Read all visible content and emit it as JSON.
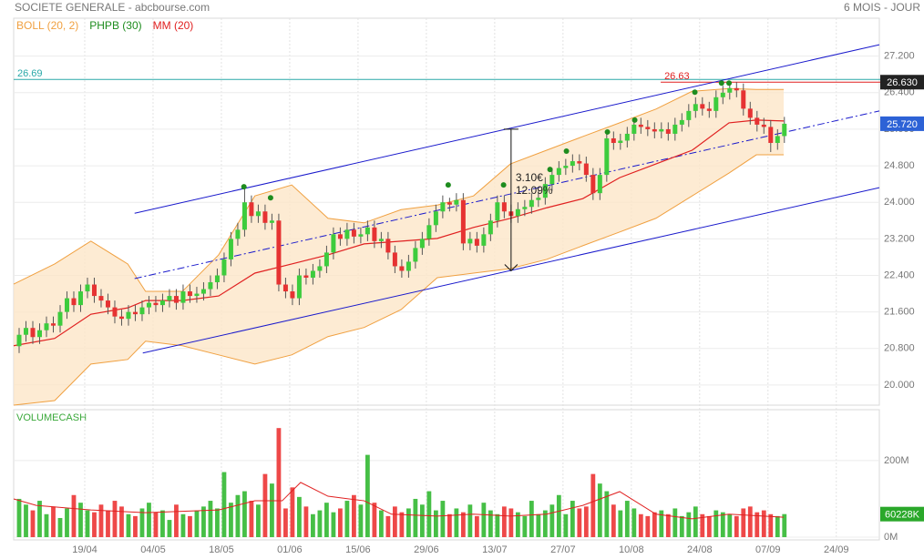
{
  "chart_data": [
    {
      "type": "candlestick",
      "title": "SOCIETE GENERALE - abcbourse.com",
      "subtitle": "6 MOIS - JOUR",
      "xlim": [
        -0.8,
        125.9
      ],
      "xticks": [
        {
          "value": 9.6,
          "label": "19/04"
        },
        {
          "value": 19.6,
          "label": "04/05"
        },
        {
          "value": 29.6,
          "label": "18/05"
        },
        {
          "value": 39.6,
          "label": "01/06"
        },
        {
          "value": 49.6,
          "label": "15/06"
        },
        {
          "value": 59.6,
          "label": "29/06"
        },
        {
          "value": 69.6,
          "label": "13/07"
        },
        {
          "value": 79.6,
          "label": "27/07"
        },
        {
          "value": 89.6,
          "label": "10/08"
        },
        {
          "value": 99.6,
          "label": "24/08"
        },
        {
          "value": 109.6,
          "label": "07/09"
        },
        {
          "value": 119.6,
          "label": "24/09"
        }
      ],
      "ylim": [
        19.56,
        28.03
      ],
      "yticks": [
        {
          "value": 20,
          "label": "20.000"
        },
        {
          "value": 20.8,
          "label": "20.800"
        },
        {
          "value": 21.6,
          "label": "21.600"
        },
        {
          "value": 22.4,
          "label": "22.400"
        },
        {
          "value": 23.2,
          "label": "23.200"
        },
        {
          "value": 24,
          "label": "24.000"
        },
        {
          "value": 24.8,
          "label": "24.800"
        },
        {
          "value": 25.6,
          "label": "25.600"
        },
        {
          "value": 26.4,
          "label": "26.400"
        },
        {
          "value": 27.2,
          "label": "27.200"
        }
      ],
      "grid": true,
      "up_color": "#3dcc3d",
      "down_color": "#e63232",
      "open": [
        20.85,
        21.1,
        21.25,
        21.05,
        21.2,
        21.35,
        21.3,
        21.6,
        21.9,
        21.75,
        22.05,
        22.2,
        21.95,
        21.85,
        21.7,
        21.5,
        21.45,
        21.6,
        21.55,
        21.7,
        21.8,
        21.75,
        21.85,
        21.95,
        21.8,
        22.05,
        21.95,
        22.0,
        22.1,
        22.25,
        22.4,
        22.75,
        23.2,
        23.4,
        24.0,
        23.7,
        23.8,
        23.55,
        23.6,
        22.2,
        22.05,
        21.9,
        22.4,
        22.35,
        22.5,
        22.6,
        22.9,
        23.3,
        23.2,
        23.4,
        23.25,
        23.3,
        23.45,
        23.15,
        23.2,
        22.9,
        22.6,
        22.5,
        22.7,
        23.0,
        23.2,
        23.5,
        23.8,
        24.0,
        23.95,
        24.05,
        23.1,
        23.2,
        23.05,
        23.3,
        23.6,
        24.0,
        23.8,
        23.7,
        23.85,
        23.9,
        24.05,
        24.1,
        24.4,
        24.6,
        24.75,
        24.8,
        24.9,
        24.85,
        24.6,
        24.2,
        24.6,
        25.4,
        25.3,
        25.35,
        25.5,
        25.7,
        25.65,
        25.6,
        25.55,
        25.6,
        25.5,
        25.7,
        25.8,
        26.0,
        26.15,
        26.05,
        26.0,
        26.3,
        26.4,
        26.5,
        26.45,
        26.05,
        25.85,
        25.7,
        25.65,
        25.3,
        25.45
      ],
      "high": [
        21.25,
        21.4,
        21.4,
        21.35,
        21.5,
        21.5,
        21.75,
        22.05,
        22.05,
        22.2,
        22.35,
        22.35,
        22.1,
        22.0,
        21.85,
        21.65,
        21.75,
        21.75,
        21.85,
        21.95,
        21.95,
        22.0,
        22.1,
        22.1,
        22.2,
        22.2,
        22.15,
        22.25,
        22.4,
        22.55,
        22.9,
        23.35,
        23.55,
        24.3,
        24.15,
        23.95,
        23.95,
        23.75,
        23.75,
        22.35,
        22.2,
        22.55,
        22.55,
        22.65,
        22.75,
        23.05,
        23.45,
        23.45,
        23.55,
        23.55,
        23.45,
        23.6,
        23.6,
        23.35,
        23.35,
        23.05,
        22.75,
        22.85,
        23.15,
        23.35,
        23.65,
        23.95,
        24.15,
        24.1,
        24.2,
        24.2,
        23.35,
        23.35,
        23.45,
        23.75,
        24.15,
        24.15,
        23.95,
        24.0,
        24.05,
        24.2,
        24.25,
        24.55,
        24.75,
        24.9,
        24.95,
        25.05,
        25.05,
        25.0,
        24.75,
        24.75,
        25.55,
        25.55,
        25.5,
        25.65,
        25.85,
        25.85,
        25.8,
        25.75,
        25.75,
        25.75,
        25.85,
        25.95,
        26.15,
        26.3,
        26.3,
        26.2,
        26.45,
        26.55,
        26.63,
        26.63,
        26.6,
        26.2,
        26.0,
        25.85,
        25.8,
        25.6,
        25.87
      ],
      "low": [
        20.7,
        20.95,
        20.9,
        20.9,
        21.05,
        21.15,
        21.15,
        21.45,
        21.6,
        21.6,
        21.9,
        21.8,
        21.7,
        21.55,
        21.35,
        21.3,
        21.3,
        21.4,
        21.4,
        21.55,
        21.6,
        21.6,
        21.7,
        21.65,
        21.65,
        21.8,
        21.8,
        21.85,
        21.95,
        22.1,
        22.25,
        22.6,
        23.05,
        23.25,
        23.55,
        23.55,
        23.4,
        23.4,
        22.05,
        21.9,
        21.75,
        21.75,
        22.2,
        22.2,
        22.35,
        22.45,
        22.75,
        23.05,
        23.05,
        23.1,
        23.1,
        23.15,
        23.0,
        23.0,
        22.75,
        22.45,
        22.35,
        22.35,
        22.55,
        22.85,
        23.05,
        23.35,
        23.65,
        23.8,
        23.8,
        22.95,
        22.95,
        22.9,
        22.9,
        23.15,
        23.45,
        23.65,
        23.55,
        23.55,
        23.7,
        23.75,
        23.9,
        23.95,
        24.25,
        24.45,
        24.6,
        24.65,
        24.7,
        24.45,
        24.05,
        24.05,
        24.45,
        25.15,
        25.15,
        25.2,
        25.35,
        25.5,
        25.45,
        25.4,
        25.4,
        25.35,
        25.35,
        25.55,
        25.65,
        25.85,
        25.9,
        25.85,
        25.85,
        26.15,
        26.25,
        26.3,
        25.9,
        25.7,
        25.55,
        25.5,
        25.1,
        25.15,
        25.3
      ],
      "close": [
        21.1,
        21.25,
        21.05,
        21.2,
        21.35,
        21.3,
        21.6,
        21.9,
        21.75,
        22.05,
        22.2,
        21.95,
        21.85,
        21.7,
        21.5,
        21.45,
        21.6,
        21.55,
        21.7,
        21.8,
        21.75,
        21.85,
        21.95,
        21.8,
        22.05,
        21.95,
        22.0,
        22.1,
        22.25,
        22.4,
        22.75,
        23.2,
        23.4,
        24.0,
        23.7,
        23.8,
        23.55,
        23.6,
        22.2,
        22.05,
        21.9,
        22.4,
        22.35,
        22.5,
        22.6,
        22.9,
        23.3,
        23.2,
        23.4,
        23.25,
        23.3,
        23.45,
        23.15,
        23.2,
        22.9,
        22.6,
        22.5,
        22.7,
        23.0,
        23.2,
        23.5,
        23.8,
        24.0,
        23.95,
        24.05,
        23.1,
        23.2,
        23.05,
        23.3,
        23.6,
        24.0,
        23.8,
        23.7,
        23.85,
        23.9,
        24.05,
        24.1,
        24.4,
        24.6,
        24.75,
        24.8,
        24.9,
        24.85,
        24.6,
        24.2,
        24.6,
        25.4,
        25.3,
        25.35,
        25.5,
        25.7,
        25.65,
        25.6,
        25.55,
        25.6,
        25.5,
        25.7,
        25.8,
        26.0,
        26.15,
        26.05,
        26.0,
        26.3,
        26.4,
        26.5,
        26.45,
        26.05,
        25.85,
        25.7,
        25.65,
        25.3,
        25.45,
        25.72
      ],
      "bollinger": {
        "name": "BOLL (20, 2)",
        "color": "#f0a040",
        "fill": "#fde6c8",
        "x": [
          -0.8,
          5.2,
          10.5,
          15.9,
          18.5,
          23.9,
          29.2,
          34.5,
          39.9,
          45.2,
          50.5,
          55.9,
          61.2,
          66.5,
          71.9,
          77.2,
          82.5,
          87.9,
          93.2,
          98.5,
          103.9,
          107.9,
          111.9
        ],
        "upper": [
          22.21,
          22.65,
          23.15,
          22.65,
          22.05,
          22.05,
          22.85,
          24.14,
          24.38,
          23.65,
          23.55,
          23.84,
          23.94,
          24.14,
          24.84,
          25.14,
          25.44,
          25.74,
          26.04,
          26.43,
          26.49,
          26.47,
          26.47
        ],
        "lower": [
          19.56,
          19.66,
          20.46,
          20.56,
          20.96,
          20.86,
          20.66,
          20.46,
          20.66,
          21.06,
          21.26,
          21.65,
          22.35,
          22.45,
          22.55,
          22.75,
          23.05,
          23.35,
          23.65,
          24.14,
          24.64,
          25.04,
          25.04
        ]
      },
      "phpb": {
        "name": "PHPB (30)",
        "color": "#1e8c1e",
        "x": [
          32.9,
          36.8,
          62.8,
          70.9,
          77.7,
          80.1,
          86.1,
          90.1,
          98.9,
          102.8,
          103.9
        ],
        "values": [
          24.34,
          24.1,
          24.38,
          24.38,
          24.72,
          25.12,
          25.54,
          25.8,
          26.41,
          26.61,
          26.61
        ]
      },
      "mm": {
        "name": "MM (20)",
        "color": "#e02020",
        "x": [
          -0.8,
          5.2,
          10.5,
          15.9,
          18.5,
          23.9,
          29.2,
          34.5,
          39.9,
          45.2,
          50.5,
          55.9,
          61.2,
          66.5,
          71.9,
          77.2,
          82.5,
          87.9,
          93.2,
          98.5,
          103.9,
          107.9,
          111.9
        ],
        "values": [
          20.86,
          21.02,
          21.55,
          21.69,
          21.85,
          21.85,
          21.95,
          22.45,
          22.65,
          22.85,
          23.09,
          23.15,
          23.21,
          23.45,
          23.65,
          23.88,
          24.08,
          24.54,
          24.84,
          25.14,
          25.74,
          25.8,
          25.78
        ]
      },
      "channel": {
        "color": "#1a1acc",
        "lines": [
          {
            "x": [
              16.9,
              125.9
            ],
            "values": [
              23.76,
              27.45
            ]
          },
          {
            "x": [
              16.9,
              125.9
            ],
            "values": [
              22.33,
              26.0
            ],
            "dashed": true
          },
          {
            "x": [
              18.1,
              125.9
            ],
            "values": [
              20.7,
              24.32
            ]
          }
        ]
      },
      "levels": [
        {
          "value": 26.69,
          "color": "#2aa8a8",
          "start": -0.8
        },
        {
          "value": 26.63,
          "color": "#e02020",
          "start": 93.9
        }
      ],
      "measure": {
        "x": 72,
        "values": [
          22.5,
          25.6
        ],
        "labels": [
          "3.10€",
          "12.09%"
        ]
      },
      "price_tags": [
        {
          "value": 26.63,
          "label": "26.630",
          "color": "#222222"
        },
        {
          "value": 25.72,
          "label": "25.720",
          "color": "#2d62d6"
        }
      ]
    },
    {
      "type": "bar",
      "title": "VOLUMECASH",
      "ylim": [
        0,
        333
      ],
      "yticks": [
        {
          "value": 0,
          "label": "0M"
        },
        {
          "value": 200,
          "label": "200M"
        }
      ],
      "values": [
        100,
        85,
        70,
        95,
        60,
        80,
        50,
        75,
        110,
        90,
        70,
        65,
        85,
        70,
        95,
        80,
        60,
        55,
        75,
        90,
        65,
        70,
        45,
        85,
        60,
        55,
        70,
        80,
        95,
        75,
        170,
        90,
        110,
        120,
        95,
        85,
        165,
        140,
        285,
        75,
        130,
        105,
        80,
        60,
        70,
        90,
        65,
        75,
        95,
        110,
        85,
        215,
        90,
        70,
        55,
        80,
        65,
        75,
        100,
        85,
        120,
        70,
        95,
        60,
        75,
        65,
        85,
        55,
        90,
        70,
        60,
        80,
        75,
        65,
        55,
        95,
        60,
        70,
        85,
        110,
        60,
        95,
        75,
        80,
        165,
        140,
        120,
        85,
        70,
        95,
        75,
        60,
        55,
        65,
        70,
        60,
        75,
        55,
        65,
        80,
        60,
        55,
        70,
        65,
        60,
        55,
        75,
        80,
        65,
        70,
        60,
        55,
        60.228
      ],
      "last_tag": {
        "value": 60.228,
        "label": "60228K",
        "color": "#2aa82a"
      },
      "ma": {
        "color": "#e02020",
        "x": [
          -0.8,
          2.5,
          10.5,
          18.5,
          29.2,
          34.5,
          38.5,
          41.2,
          45.2,
          50.5,
          54.5,
          61.2,
          66.5,
          71.9,
          77.2,
          82.5,
          87.9,
          93.2,
          98.5,
          103.9,
          111.9
        ],
        "values": [
          100,
          83,
          71,
          64,
          71,
          95,
          95,
          143,
          107,
          95,
          60,
          55,
          60,
          55,
          60,
          83,
          119,
          60,
          48,
          60,
          52
        ]
      }
    }
  ]
}
